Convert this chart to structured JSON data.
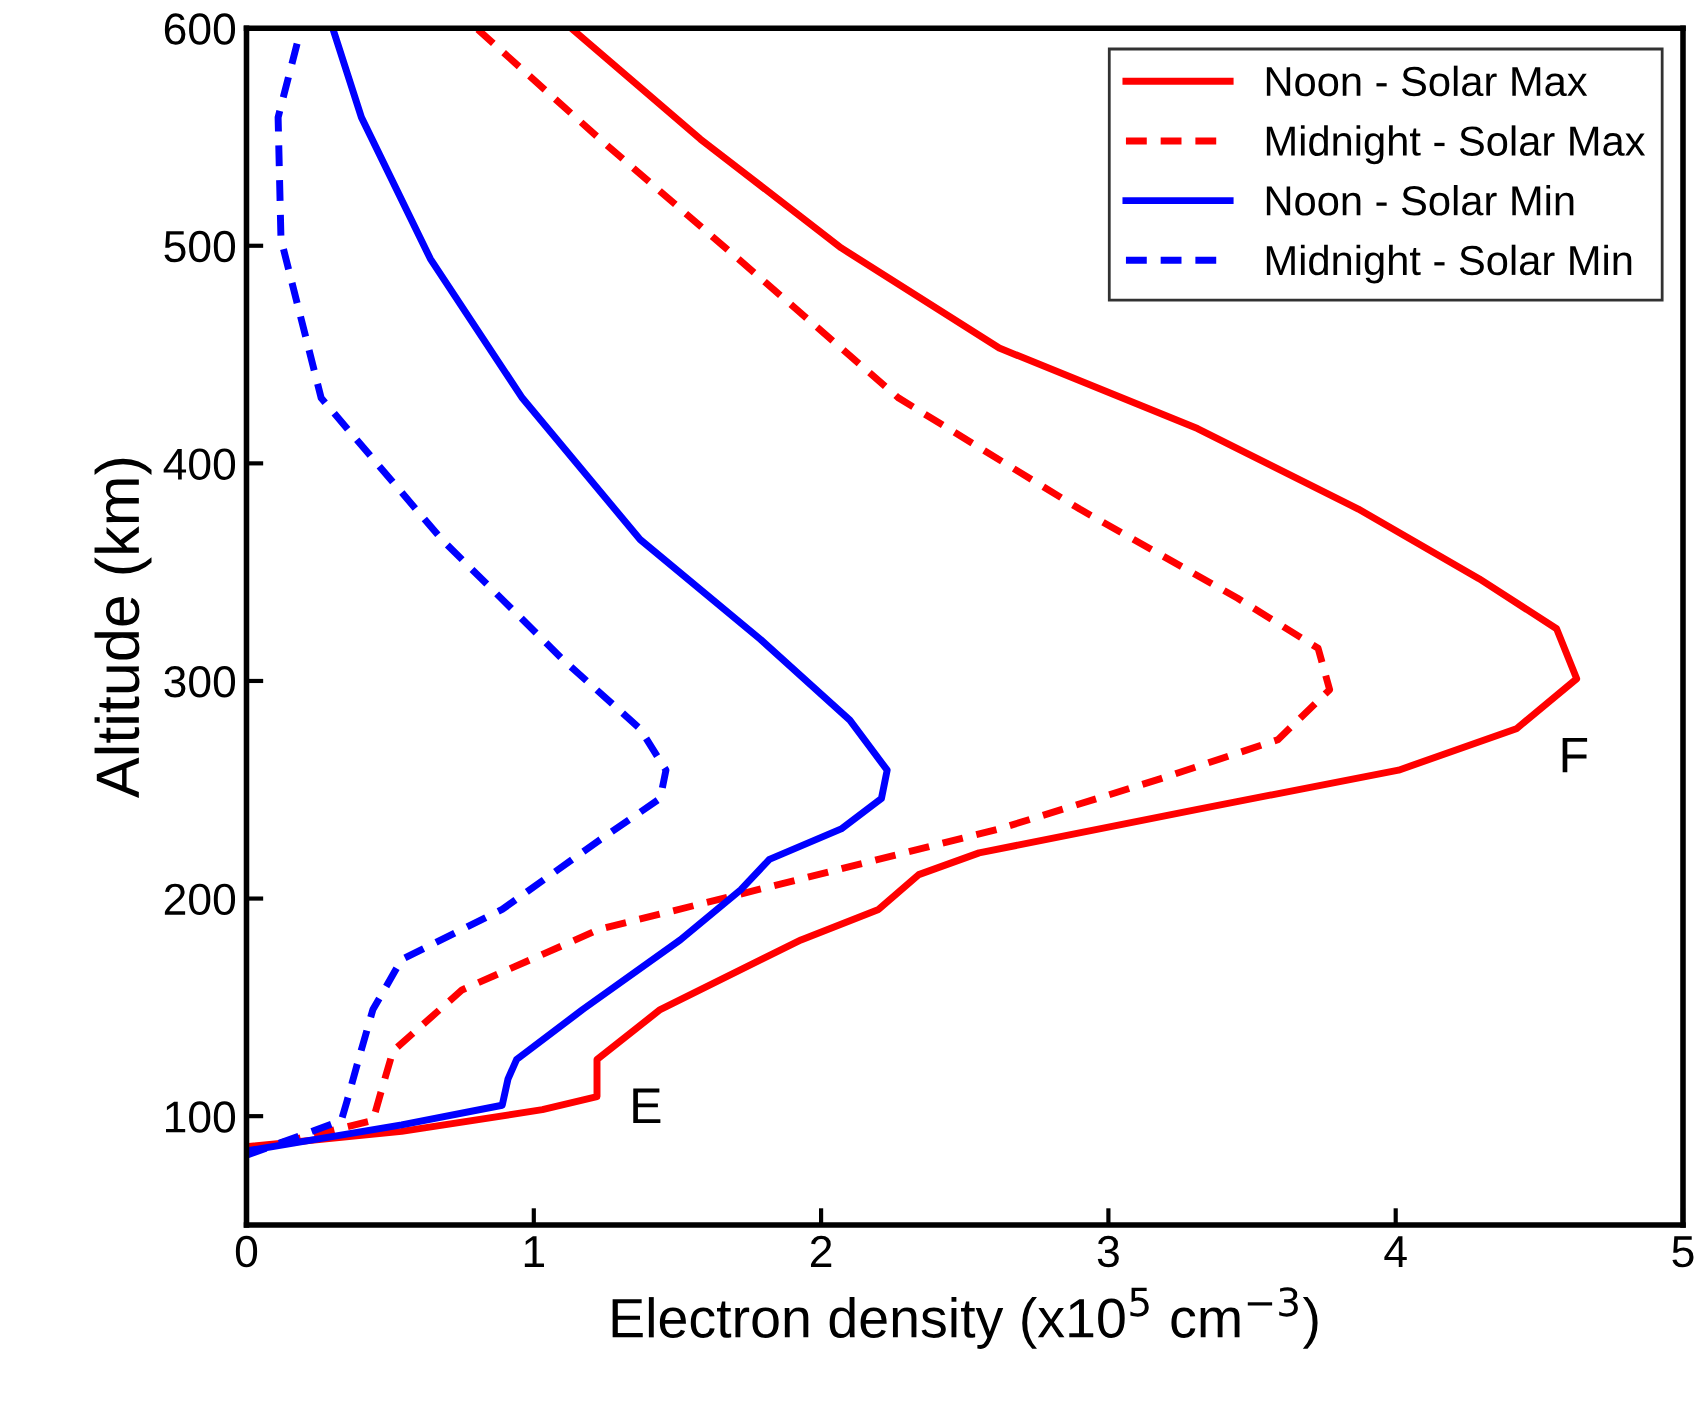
{
  "chart_data": {
    "type": "line",
    "xlabel": "Electron density (x10$^{5}$ cm$^{−3}$)",
    "ylabel": "Altitude (km)",
    "xlim": [
      0,
      5
    ],
    "xticks": [
      0,
      1,
      2,
      3,
      4,
      5
    ],
    "ylim": [
      50,
      600
    ],
    "yticks": [
      100,
      200,
      300,
      400,
      500,
      600
    ],
    "grid": false,
    "legend": "top right",
    "marker": "none",
    "annotations": [
      "E",
      "F"
    ],
    "series": [
      {
        "name": "Noon - Solar Max",
        "color": "#ff0000",
        "line_style": "solid",
        "x": [
          0,
          0.54,
          1.03,
          1.22,
          1.22,
          1.44,
          1.93,
          2.2,
          2.34,
          2.55,
          3.31,
          4.01,
          4.42,
          4.63,
          4.56,
          4.29,
          3.87,
          3.31,
          2.62,
          2.07,
          1.58,
          1.13
        ],
        "values": [
          86,
          93,
          103,
          109,
          126,
          149,
          181,
          195,
          211,
          221,
          241,
          259,
          278,
          301,
          324,
          347,
          379,
          416,
          453,
          499,
          549,
          600
        ]
      },
      {
        "name": "Midnight - Solar Max",
        "color": "#ff0000",
        "line_style": "dashed",
        "x": [
          0,
          0.44,
          0.47,
          0.51,
          0.75,
          1.23,
          1.93,
          2.62,
          3.18,
          3.59,
          3.77,
          3.73,
          3.45,
          2.9,
          2.27,
          1.79,
          1.23,
          0.8
        ],
        "values": [
          84,
          98,
          112,
          130,
          158,
          186,
          209,
          232,
          255,
          273,
          296,
          315,
          338,
          379,
          430,
          485,
          549,
          600
        ]
      },
      {
        "name": "Noon - Solar Min",
        "color": "#0000ff",
        "line_style": "solid",
        "x": [
          0,
          0.54,
          0.89,
          0.91,
          0.94,
          1.17,
          1.51,
          1.72,
          1.82,
          2.07,
          2.21,
          2.23,
          2.1,
          1.79,
          1.37,
          0.96,
          0.64,
          0.4,
          0.3
        ],
        "values": [
          84,
          96,
          105,
          117,
          126,
          149,
          181,
          204,
          218,
          232,
          246,
          259,
          282,
          319,
          365,
          430,
          494,
          559,
          600
        ]
      },
      {
        "name": "Midnight - Solar Min",
        "color": "#0000ff",
        "line_style": "dashed",
        "x": [
          0,
          0.33,
          0.35,
          0.39,
          0.44,
          0.54,
          0.89,
          1.23,
          1.44,
          1.46,
          1.37,
          1.1,
          0.68,
          0.26,
          0.12,
          0.11,
          0.19
        ],
        "values": [
          82,
          98,
          107,
          126,
          149,
          172,
          195,
          227,
          246,
          259,
          278,
          310,
          365,
          430,
          503,
          559,
          600
        ]
      }
    ]
  }
}
